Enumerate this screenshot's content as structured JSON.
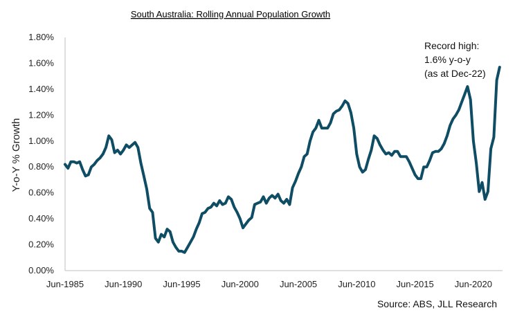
{
  "chart_data": {
    "type": "line",
    "title": "South Australia: Rolling Annual Population Growth",
    "ylabel": "Y-o-Y % Growth",
    "xlabel": "",
    "ylim": [
      0,
      1.8
    ],
    "yticks": [
      "0.00%",
      "0.20%",
      "0.40%",
      "0.60%",
      "0.80%",
      "1.00%",
      "1.20%",
      "1.40%",
      "1.60%",
      "1.80%"
    ],
    "xlim": [
      1985.5,
      2023.0
    ],
    "xticks": [
      {
        "x": 1985.5,
        "label": "Jun-1985"
      },
      {
        "x": 1990.5,
        "label": "Jun-1990"
      },
      {
        "x": 1995.5,
        "label": "Jun-1995"
      },
      {
        "x": 2000.5,
        "label": "Jun-2000"
      },
      {
        "x": 2005.5,
        "label": "Jun-2005"
      },
      {
        "x": 2010.5,
        "label": "Jun-2010"
      },
      {
        "x": 2015.5,
        "label": "Jun-2015"
      },
      {
        "x": 2020.5,
        "label": "Jun-2020"
      }
    ],
    "grid": false,
    "line_color": "#0e4d63",
    "annotation": [
      "Record high:",
      "1.6% y-o-y",
      "(as at Dec-22)"
    ],
    "source": "Source: ABS, JLL Research",
    "series": [
      {
        "values": [
          [
            1985.5,
            0.82
          ],
          [
            1985.75,
            0.79
          ],
          [
            1986.0,
            0.84
          ],
          [
            1986.25,
            0.84
          ],
          [
            1986.5,
            0.83
          ],
          [
            1986.75,
            0.84
          ],
          [
            1987.0,
            0.78
          ],
          [
            1987.25,
            0.73
          ],
          [
            1987.5,
            0.74
          ],
          [
            1987.75,
            0.8
          ],
          [
            1988.0,
            0.82
          ],
          [
            1988.25,
            0.85
          ],
          [
            1988.5,
            0.87
          ],
          [
            1988.75,
            0.9
          ],
          [
            1989.0,
            0.95
          ],
          [
            1989.25,
            1.04
          ],
          [
            1989.5,
            1.01
          ],
          [
            1989.75,
            0.91
          ],
          [
            1990.0,
            0.93
          ],
          [
            1990.25,
            0.9
          ],
          [
            1990.5,
            0.93
          ],
          [
            1990.75,
            0.97
          ],
          [
            1991.0,
            0.95
          ],
          [
            1991.25,
            0.97
          ],
          [
            1991.5,
            0.99
          ],
          [
            1991.75,
            0.95
          ],
          [
            1992.0,
            0.83
          ],
          [
            1992.25,
            0.73
          ],
          [
            1992.5,
            0.63
          ],
          [
            1992.75,
            0.48
          ],
          [
            1993.0,
            0.45
          ],
          [
            1993.25,
            0.25
          ],
          [
            1993.5,
            0.22
          ],
          [
            1993.75,
            0.28
          ],
          [
            1994.0,
            0.26
          ],
          [
            1994.25,
            0.32
          ],
          [
            1994.5,
            0.3
          ],
          [
            1994.75,
            0.22
          ],
          [
            1995.0,
            0.18
          ],
          [
            1995.25,
            0.15
          ],
          [
            1995.5,
            0.15
          ],
          [
            1995.75,
            0.14
          ],
          [
            1996.0,
            0.18
          ],
          [
            1996.25,
            0.22
          ],
          [
            1996.5,
            0.26
          ],
          [
            1996.75,
            0.32
          ],
          [
            1997.0,
            0.37
          ],
          [
            1997.25,
            0.44
          ],
          [
            1997.5,
            0.45
          ],
          [
            1997.75,
            0.48
          ],
          [
            1998.0,
            0.49
          ],
          [
            1998.25,
            0.52
          ],
          [
            1998.5,
            0.5
          ],
          [
            1998.75,
            0.54
          ],
          [
            1999.0,
            0.51
          ],
          [
            1999.25,
            0.52
          ],
          [
            1999.5,
            0.57
          ],
          [
            1999.75,
            0.55
          ],
          [
            2000.0,
            0.49
          ],
          [
            2000.25,
            0.45
          ],
          [
            2000.5,
            0.4
          ],
          [
            2000.75,
            0.33
          ],
          [
            2001.0,
            0.36
          ],
          [
            2001.25,
            0.39
          ],
          [
            2001.5,
            0.41
          ],
          [
            2001.75,
            0.51
          ],
          [
            2002.0,
            0.52
          ],
          [
            2002.25,
            0.53
          ],
          [
            2002.5,
            0.57
          ],
          [
            2002.75,
            0.52
          ],
          [
            2003.0,
            0.56
          ],
          [
            2003.25,
            0.58
          ],
          [
            2003.5,
            0.56
          ],
          [
            2003.75,
            0.59
          ],
          [
            2004.0,
            0.54
          ],
          [
            2004.25,
            0.52
          ],
          [
            2004.5,
            0.55
          ],
          [
            2004.75,
            0.51
          ],
          [
            2005.0,
            0.64
          ],
          [
            2005.25,
            0.69
          ],
          [
            2005.5,
            0.75
          ],
          [
            2005.75,
            0.8
          ],
          [
            2006.0,
            0.88
          ],
          [
            2006.25,
            0.9
          ],
          [
            2006.5,
            1.0
          ],
          [
            2006.75,
            1.07
          ],
          [
            2007.0,
            1.1
          ],
          [
            2007.25,
            1.16
          ],
          [
            2007.5,
            1.1
          ],
          [
            2007.75,
            1.1
          ],
          [
            2008.0,
            1.1
          ],
          [
            2008.25,
            1.14
          ],
          [
            2008.5,
            1.21
          ],
          [
            2008.75,
            1.23
          ],
          [
            2009.0,
            1.24
          ],
          [
            2009.25,
            1.27
          ],
          [
            2009.5,
            1.31
          ],
          [
            2009.75,
            1.29
          ],
          [
            2010.0,
            1.22
          ],
          [
            2010.25,
            1.1
          ],
          [
            2010.5,
            0.9
          ],
          [
            2010.75,
            0.8
          ],
          [
            2011.0,
            0.76
          ],
          [
            2011.25,
            0.78
          ],
          [
            2011.5,
            0.86
          ],
          [
            2011.75,
            0.93
          ],
          [
            2012.0,
            1.04
          ],
          [
            2012.25,
            1.02
          ],
          [
            2012.5,
            0.97
          ],
          [
            2012.75,
            0.93
          ],
          [
            2013.0,
            0.9
          ],
          [
            2013.25,
            0.91
          ],
          [
            2013.5,
            0.89
          ],
          [
            2013.75,
            0.92
          ],
          [
            2014.0,
            0.92
          ],
          [
            2014.25,
            0.88
          ],
          [
            2014.5,
            0.88
          ],
          [
            2014.75,
            0.88
          ],
          [
            2015.0,
            0.84
          ],
          [
            2015.25,
            0.79
          ],
          [
            2015.5,
            0.74
          ],
          [
            2015.75,
            0.71
          ],
          [
            2016.0,
            0.71
          ],
          [
            2016.25,
            0.8
          ],
          [
            2016.5,
            0.8
          ],
          [
            2016.75,
            0.85
          ],
          [
            2017.0,
            0.91
          ],
          [
            2017.25,
            0.92
          ],
          [
            2017.5,
            0.92
          ],
          [
            2017.75,
            0.94
          ],
          [
            2018.0,
            0.98
          ],
          [
            2018.25,
            1.04
          ],
          [
            2018.5,
            1.12
          ],
          [
            2018.75,
            1.17
          ],
          [
            2019.0,
            1.2
          ],
          [
            2019.25,
            1.24
          ],
          [
            2019.5,
            1.3
          ],
          [
            2019.75,
            1.36
          ],
          [
            2020.0,
            1.42
          ],
          [
            2020.25,
            1.32
          ],
          [
            2020.5,
            1.0
          ],
          [
            2020.75,
            0.83
          ],
          [
            2021.0,
            0.61
          ],
          [
            2021.25,
            0.68
          ],
          [
            2021.5,
            0.55
          ],
          [
            2021.75,
            0.61
          ],
          [
            2022.0,
            0.94
          ],
          [
            2022.25,
            1.03
          ],
          [
            2022.5,
            1.47
          ],
          [
            2022.75,
            1.57
          ]
        ]
      }
    ]
  }
}
